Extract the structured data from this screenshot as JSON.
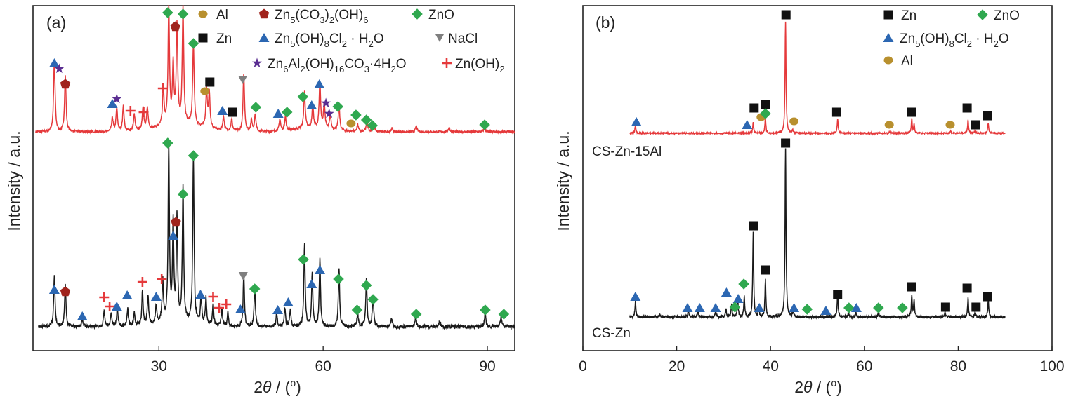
{
  "colors": {
    "red_trace": "#e5393b",
    "black_trace": "#1a1a1a",
    "Zn": "#111111",
    "ZnO": "#2fa84f",
    "Zn5OH8Cl2": "#2c67b2",
    "Al": "#b8902e",
    "Zn5CO3": "#a0231c",
    "NaCl": "#7f7f7f",
    "ZnAlLDH": "#5a2d91",
    "ZnOH2": "#e5393b"
  },
  "chart_data": [
    {
      "panel": "(a)",
      "type": "line",
      "xlabel_prefix": "2",
      "xlabel_theta": "θ",
      "xlabel_suffix": " / (",
      "xlabel_unit": "o",
      "xlabel_close": ")",
      "ylabel": "Intensity / a.u.",
      "xlim": [
        7,
        95
      ],
      "xticks": [
        30,
        60,
        90
      ],
      "legend": {
        "Al": "Al",
        "Zn": "Zn",
        "ZnO": "ZnO",
        "NaCl": "NaCl",
        "Zn5CO3_a": "Zn",
        "Zn5CO3_s1": "5",
        "Zn5CO3_b": "(CO",
        "Zn5CO3_s2": "3",
        "Zn5CO3_c": ")",
        "Zn5CO3_s3": "2",
        "Zn5CO3_d": "(OH)",
        "Zn5CO3_s4": "6",
        "Zn5OH_a": "Zn",
        "Zn5OH_s1": "5",
        "Zn5OH_b": "(OH)",
        "Zn5OH_s2": "8",
        "Zn5OH_c": "Cl",
        "Zn5OH_s3": "2",
        "Zn5OH_d": " · H",
        "Zn5OH_s4": "2",
        "Zn5OH_e": "O",
        "LDH_a": "Zn",
        "LDH_s1": "6",
        "LDH_b": "Al",
        "LDH_s2": "2",
        "LDH_c": "(OH)",
        "LDH_s3": "16",
        "LDH_d": "CO",
        "LDH_s4": "3",
        "LDH_e": "·4H",
        "LDH_s5": "2",
        "LDH_f": "O",
        "ZnOH2_a": "Zn(OH)",
        "ZnOH2_s1": "2"
      },
      "series": [
        {
          "color": "red",
          "baseline": 0.52,
          "peaks": [
            [
              10.9,
              0.62
            ],
            [
              12.9,
              0.48
            ],
            [
              21.5,
              0.12
            ],
            [
              22.3,
              0.2
            ],
            [
              23.5,
              0.22
            ],
            [
              25.5,
              0.14
            ],
            [
              27.1,
              0.2
            ],
            [
              27.9,
              0.18
            ],
            [
              30.8,
              0.33
            ],
            [
              31.8,
              1.0
            ],
            [
              32.6,
              0.5
            ],
            [
              33.3,
              0.85
            ],
            [
              34.4,
              1.0
            ],
            [
              36.3,
              0.7
            ],
            [
              38.7,
              0.32
            ],
            [
              39.2,
              0.3
            ],
            [
              41.8,
              0.12
            ],
            [
              43.3,
              0.1
            ],
            [
              45.5,
              0.5
            ],
            [
              46.9,
              0.1
            ],
            [
              47.6,
              0.15
            ],
            [
              52.1,
              0.1
            ],
            [
              53.1,
              0.12
            ],
            [
              56.6,
              0.32
            ],
            [
              58.1,
              0.2
            ],
            [
              59.4,
              0.4
            ],
            [
              60.2,
              0.22
            ],
            [
              61.3,
              0.12
            ],
            [
              62.9,
              0.22
            ],
            [
              66.3,
              0.06
            ],
            [
              68.0,
              0.1
            ],
            [
              69.2,
              0.08
            ],
            [
              72.6,
              0.03
            ],
            [
              77.0,
              0.05
            ],
            [
              83.0,
              0.04
            ],
            [
              89.5,
              0.04
            ]
          ]
        },
        {
          "color": "black",
          "baseline": 0.0,
          "peaks": [
            [
              10.9,
              0.3
            ],
            [
              12.9,
              0.24
            ],
            [
              16.0,
              0.05
            ],
            [
              20.0,
              0.1
            ],
            [
              21.3,
              0.08
            ],
            [
              22.4,
              0.12
            ],
            [
              24.3,
              0.1
            ],
            [
              25.5,
              0.08
            ],
            [
              27.0,
              0.2
            ],
            [
              28.0,
              0.17
            ],
            [
              29.5,
              0.1
            ],
            [
              30.7,
              0.25
            ],
            [
              31.8,
              1.0
            ],
            [
              32.6,
              0.56
            ],
            [
              33.3,
              0.58
            ],
            [
              34.4,
              0.76
            ],
            [
              36.3,
              0.95
            ],
            [
              37.7,
              0.16
            ],
            [
              38.6,
              0.15
            ],
            [
              39.9,
              0.12
            ],
            [
              41.5,
              0.1
            ],
            [
              42.6,
              0.08
            ],
            [
              45.5,
              0.3
            ],
            [
              47.5,
              0.23
            ],
            [
              51.5,
              0.07
            ],
            [
              53.0,
              0.1
            ],
            [
              54.0,
              0.1
            ],
            [
              56.6,
              0.48
            ],
            [
              58.0,
              0.3
            ],
            [
              59.4,
              0.38
            ],
            [
              62.9,
              0.33
            ],
            [
              66.3,
              0.08
            ],
            [
              67.9,
              0.28
            ],
            [
              69.1,
              0.18
            ],
            [
              72.5,
              0.05
            ],
            [
              76.9,
              0.06
            ],
            [
              81.3,
              0.04
            ],
            [
              89.6,
              0.08
            ],
            [
              92.5,
              0.06
            ]
          ]
        }
      ]
    },
    {
      "panel": "(b)",
      "type": "line",
      "xlabel_prefix": "2",
      "xlabel_theta": "θ",
      "xlabel_suffix": " / (",
      "xlabel_unit": "o",
      "xlabel_close": ")",
      "ylabel": "Intensity / a.u.",
      "xlim": [
        0,
        100
      ],
      "xticks": [
        0,
        20,
        40,
        60,
        80,
        100
      ],
      "xticklabels": [
        "0",
        "20",
        "40",
        "60",
        "80",
        "100"
      ],
      "legend": {
        "Zn": "Zn",
        "ZnO": "ZnO",
        "Al": "Al",
        "Zn5OH_a": "Zn",
        "Zn5OH_s1": "5",
        "Zn5OH_b": "(OH)",
        "Zn5OH_s2": "8",
        "Zn5OH_c": "Cl",
        "Zn5OH_s3": "2",
        "Zn5OH_d": " · H",
        "Zn5OH_s4": "2",
        "Zn5OH_e": "O"
      },
      "series": [
        {
          "name": "CS-Zn-15Al",
          "color": "red",
          "baseline": 0.0,
          "peaks": [
            [
              11.2,
              0.07
            ],
            [
              36.3,
              0.1
            ],
            [
              38.9,
              0.14
            ],
            [
              43.2,
              1.0
            ],
            [
              44.7,
              0.03
            ],
            [
              54.3,
              0.13
            ],
            [
              65.5,
              0.02
            ],
            [
              70.1,
              0.13
            ],
            [
              70.6,
              0.08
            ],
            [
              78.4,
              0.02
            ],
            [
              82.1,
              0.12
            ],
            [
              83.6,
              0.03
            ],
            [
              86.4,
              0.09
            ]
          ]
        },
        {
          "name": "CS-Zn",
          "color": "black",
          "baseline": 0.0,
          "peaks": [
            [
              11.2,
              0.09
            ],
            [
              16.3,
              0.02
            ],
            [
              22.5,
              0.04
            ],
            [
              24.5,
              0.04
            ],
            [
              28.3,
              0.04
            ],
            [
              30.5,
              0.05
            ],
            [
              31.7,
              0.08
            ],
            [
              33.0,
              0.11
            ],
            [
              34.4,
              0.12
            ],
            [
              36.3,
              0.5
            ],
            [
              37.5,
              0.06
            ],
            [
              38.9,
              0.22
            ],
            [
              43.2,
              1.0
            ],
            [
              44.8,
              0.04
            ],
            [
              54.3,
              0.15
            ],
            [
              56.6,
              0.03
            ],
            [
              58.2,
              0.03
            ],
            [
              63.0,
              0.03
            ],
            [
              70.1,
              0.13
            ],
            [
              70.6,
              0.1
            ],
            [
              77.2,
              0.03
            ],
            [
              82.1,
              0.11
            ],
            [
              83.6,
              0.03
            ],
            [
              86.4,
              0.1
            ]
          ]
        }
      ]
    }
  ]
}
